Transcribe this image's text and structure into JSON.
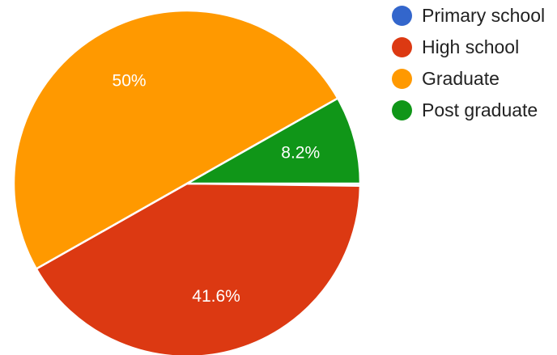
{
  "chart_data": {
    "type": "pie",
    "categories": [
      "Primary school",
      "High school",
      "Graduate",
      "Post graduate"
    ],
    "values": [
      0.2,
      41.6,
      50,
      8.2
    ],
    "data_labels": [
      "",
      "41.6%",
      "50%",
      "8.2%"
    ],
    "colors": [
      "#3366cc",
      "#dc3912",
      "#ff9900",
      "#109618"
    ],
    "legend_position": "right",
    "start_direction": "east",
    "rotation": "clockwise"
  }
}
